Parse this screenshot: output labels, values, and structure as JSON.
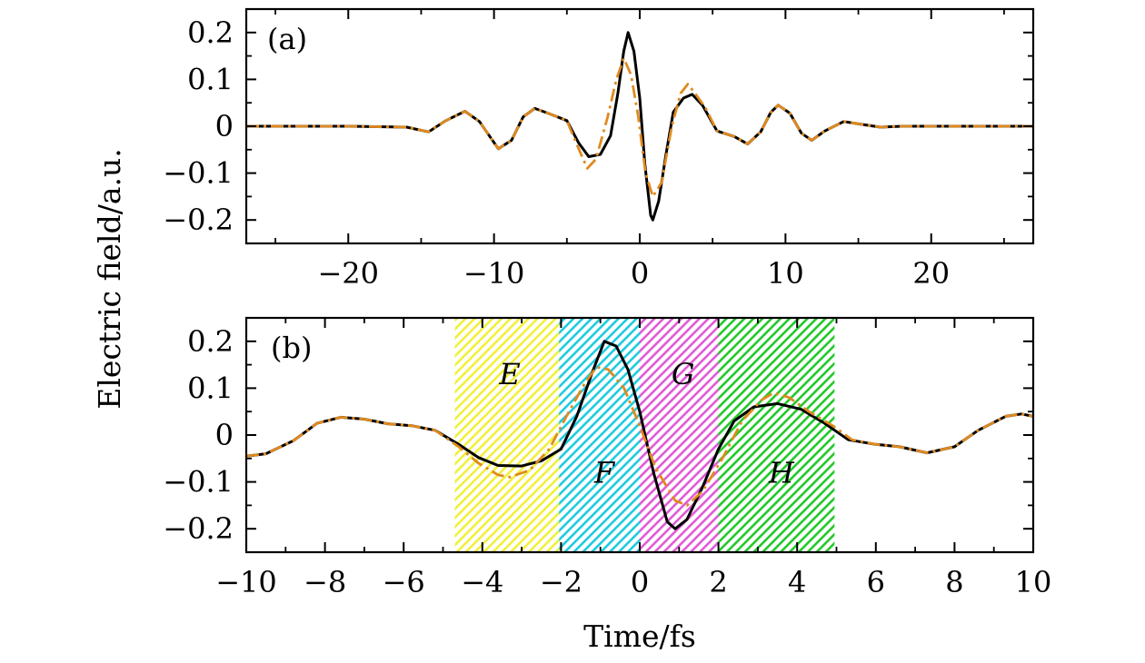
{
  "chart_data": [
    {
      "type": "line",
      "panel_label": "(a)",
      "xlim": [
        -27,
        27
      ],
      "ylim": [
        -0.25,
        0.25
      ],
      "xticks": [
        -20,
        -10,
        0,
        10,
        20
      ],
      "xtick_labels": [
        "−20",
        "−10",
        "0",
        "10",
        "20"
      ],
      "yticks": [
        -0.2,
        -0.1,
        0,
        0.1,
        0.2
      ],
      "ytick_labels": [
        "−0.2",
        "−0.1",
        "0",
        "0.1",
        "0.2"
      ],
      "series": [
        {
          "style": "solid",
          "color": "#000000",
          "points": [
            [
              -27,
              0
            ],
            [
              -20,
              0
            ],
            [
              -16,
              -0.002
            ],
            [
              -14.5,
              -0.012
            ],
            [
              -13.3,
              0.012
            ],
            [
              -12,
              0.032
            ],
            [
              -11,
              0.01
            ],
            [
              -9.7,
              -0.048
            ],
            [
              -8.8,
              -0.03
            ],
            [
              -8,
              0.02
            ],
            [
              -7.2,
              0.038
            ],
            [
              -6.3,
              0.028
            ],
            [
              -5,
              0.012
            ],
            [
              -4.2,
              -0.035
            ],
            [
              -3.5,
              -0.065
            ],
            [
              -2.7,
              -0.06
            ],
            [
              -2,
              -0.02
            ],
            [
              -1.5,
              0.07
            ],
            [
              -1.1,
              0.16
            ],
            [
              -0.8,
              0.2
            ],
            [
              -0.4,
              0.16
            ],
            [
              0,
              0.06
            ],
            [
              0.35,
              -0.08
            ],
            [
              0.75,
              -0.19
            ],
            [
              0.9,
              -0.2
            ],
            [
              1.3,
              -0.16
            ],
            [
              1.8,
              -0.06
            ],
            [
              2.3,
              0.03
            ],
            [
              3,
              0.06
            ],
            [
              3.6,
              0.068
            ],
            [
              4.3,
              0.045
            ],
            [
              5.3,
              -0.01
            ],
            [
              6.5,
              -0.022
            ],
            [
              7.4,
              -0.038
            ],
            [
              8.3,
              -0.012
            ],
            [
              9,
              0.03
            ],
            [
              9.5,
              0.045
            ],
            [
              10.3,
              0.028
            ],
            [
              11.1,
              -0.015
            ],
            [
              11.8,
              -0.03
            ],
            [
              12.7,
              -0.01
            ],
            [
              14,
              0.01
            ],
            [
              15,
              0.005
            ],
            [
              16.5,
              -0.002
            ],
            [
              18,
              0
            ],
            [
              27,
              0
            ]
          ]
        },
        {
          "style": "dash-dot",
          "color": "#e08a1f",
          "points": [
            [
              -27,
              0
            ],
            [
              -20,
              0
            ],
            [
              -16,
              -0.002
            ],
            [
              -14.5,
              -0.012
            ],
            [
              -13.3,
              0.012
            ],
            [
              -12,
              0.032
            ],
            [
              -11,
              0.01
            ],
            [
              -9.7,
              -0.048
            ],
            [
              -8.8,
              -0.03
            ],
            [
              -8,
              0.02
            ],
            [
              -7.2,
              0.038
            ],
            [
              -6.3,
              0.028
            ],
            [
              -5,
              0.012
            ],
            [
              -4.3,
              -0.04
            ],
            [
              -3.6,
              -0.09
            ],
            [
              -3,
              -0.07
            ],
            [
              -2.2,
              0.02
            ],
            [
              -1.6,
              0.1
            ],
            [
              -1.1,
              0.145
            ],
            [
              -0.6,
              0.11
            ],
            [
              -0.1,
              0.02
            ],
            [
              0.4,
              -0.1
            ],
            [
              0.9,
              -0.15
            ],
            [
              1.5,
              -0.12
            ],
            [
              2.2,
              0.0
            ],
            [
              2.8,
              0.07
            ],
            [
              3.3,
              0.09
            ],
            [
              3.8,
              0.07
            ],
            [
              4.5,
              0.04
            ],
            [
              5.3,
              -0.01
            ],
            [
              6.5,
              -0.022
            ],
            [
              7.4,
              -0.038
            ],
            [
              8.3,
              -0.012
            ],
            [
              9,
              0.03
            ],
            [
              9.5,
              0.045
            ],
            [
              10.3,
              0.028
            ],
            [
              11.1,
              -0.015
            ],
            [
              11.8,
              -0.03
            ],
            [
              12.7,
              -0.01
            ],
            [
              14,
              0.01
            ],
            [
              15,
              0.005
            ],
            [
              16.5,
              -0.002
            ],
            [
              18,
              0
            ],
            [
              27,
              0
            ]
          ]
        }
      ]
    },
    {
      "type": "line",
      "panel_label": "(b)",
      "xlabel": "Time/fs",
      "xlim": [
        -10,
        10
      ],
      "ylim": [
        -0.25,
        0.25
      ],
      "xticks": [
        -10,
        -8,
        -6,
        -4,
        -2,
        0,
        2,
        4,
        6,
        8,
        10
      ],
      "xtick_labels": [
        "−10",
        "−8",
        "−6",
        "−4",
        "−2",
        "0",
        "2",
        "4",
        "6",
        "8",
        "10"
      ],
      "yticks": [
        -0.2,
        -0.1,
        0,
        0.1,
        0.2
      ],
      "ytick_labels": [
        "−0.2",
        "−0.1",
        "0",
        "0.1",
        "0.2"
      ],
      "regions": [
        {
          "label": "E",
          "x0": -4.7,
          "x1": -2.05,
          "color": "#f2f03a",
          "label_x": -3.3,
          "label_y": 0.13
        },
        {
          "label": "F",
          "x0": -2.05,
          "x1": 0,
          "color": "#1ecbe0",
          "label_x": -0.9,
          "label_y": -0.08
        },
        {
          "label": "G",
          "x0": 0,
          "x1": 2.0,
          "color": "#e05ad8",
          "label_x": 1.1,
          "label_y": 0.13
        },
        {
          "label": "H",
          "x0": 2.0,
          "x1": 4.95,
          "color": "#22c92a",
          "label_x": 3.6,
          "label_y": -0.08
        }
      ],
      "series": [
        {
          "style": "solid",
          "color": "#000000",
          "points": [
            [
              -10,
              -0.045
            ],
            [
              -9.5,
              -0.04
            ],
            [
              -8.8,
              -0.012
            ],
            [
              -8.2,
              0.025
            ],
            [
              -7.6,
              0.038
            ],
            [
              -7,
              0.034
            ],
            [
              -6.4,
              0.024
            ],
            [
              -5.8,
              0.02
            ],
            [
              -5.2,
              0.01
            ],
            [
              -4.6,
              -0.02
            ],
            [
              -4.1,
              -0.048
            ],
            [
              -3.6,
              -0.065
            ],
            [
              -3,
              -0.066
            ],
            [
              -2.5,
              -0.055
            ],
            [
              -2,
              -0.03
            ],
            [
              -1.6,
              0.04
            ],
            [
              -1.2,
              0.135
            ],
            [
              -0.9,
              0.2
            ],
            [
              -0.6,
              0.19
            ],
            [
              -0.3,
              0.14
            ],
            [
              0,
              0.05
            ],
            [
              0.35,
              -0.08
            ],
            [
              0.7,
              -0.185
            ],
            [
              0.9,
              -0.2
            ],
            [
              1.2,
              -0.18
            ],
            [
              1.6,
              -0.11
            ],
            [
              2,
              -0.03
            ],
            [
              2.4,
              0.03
            ],
            [
              2.9,
              0.06
            ],
            [
              3.5,
              0.067
            ],
            [
              4.1,
              0.055
            ],
            [
              4.7,
              0.025
            ],
            [
              5.3,
              -0.01
            ],
            [
              6,
              -0.02
            ],
            [
              6.6,
              -0.025
            ],
            [
              7.3,
              -0.038
            ],
            [
              8,
              -0.025
            ],
            [
              8.6,
              0.01
            ],
            [
              9.3,
              0.04
            ],
            [
              9.7,
              0.045
            ],
            [
              10,
              0.04
            ]
          ]
        },
        {
          "style": "dash-dot",
          "color": "#e08a1f",
          "points": [
            [
              -10,
              -0.045
            ],
            [
              -9.5,
              -0.04
            ],
            [
              -8.8,
              -0.012
            ],
            [
              -8.2,
              0.025
            ],
            [
              -7.6,
              0.038
            ],
            [
              -7,
              0.034
            ],
            [
              -6.4,
              0.024
            ],
            [
              -5.8,
              0.02
            ],
            [
              -5.2,
              0.01
            ],
            [
              -4.6,
              -0.025
            ],
            [
              -4.1,
              -0.06
            ],
            [
              -3.6,
              -0.085
            ],
            [
              -3.3,
              -0.09
            ],
            [
              -2.8,
              -0.075
            ],
            [
              -2.3,
              -0.03
            ],
            [
              -1.8,
              0.05
            ],
            [
              -1.4,
              0.11
            ],
            [
              -1.1,
              0.145
            ],
            [
              -0.8,
              0.14
            ],
            [
              -0.4,
              0.1
            ],
            [
              0,
              0.02
            ],
            [
              0.4,
              -0.07
            ],
            [
              0.9,
              -0.14
            ],
            [
              1.2,
              -0.15
            ],
            [
              1.6,
              -0.12
            ],
            [
              2.1,
              -0.05
            ],
            [
              2.6,
              0.03
            ],
            [
              3.1,
              0.075
            ],
            [
              3.4,
              0.09
            ],
            [
              3.8,
              0.08
            ],
            [
              4.3,
              0.05
            ],
            [
              4.9,
              0.02
            ],
            [
              5.4,
              -0.01
            ],
            [
              6,
              -0.02
            ],
            [
              6.6,
              -0.025
            ],
            [
              7.3,
              -0.038
            ],
            [
              8,
              -0.025
            ],
            [
              8.6,
              0.01
            ],
            [
              9.3,
              0.04
            ],
            [
              9.7,
              0.045
            ],
            [
              10,
              0.04
            ]
          ]
        }
      ]
    }
  ],
  "shared_ylabel": "Electric field/a.u."
}
